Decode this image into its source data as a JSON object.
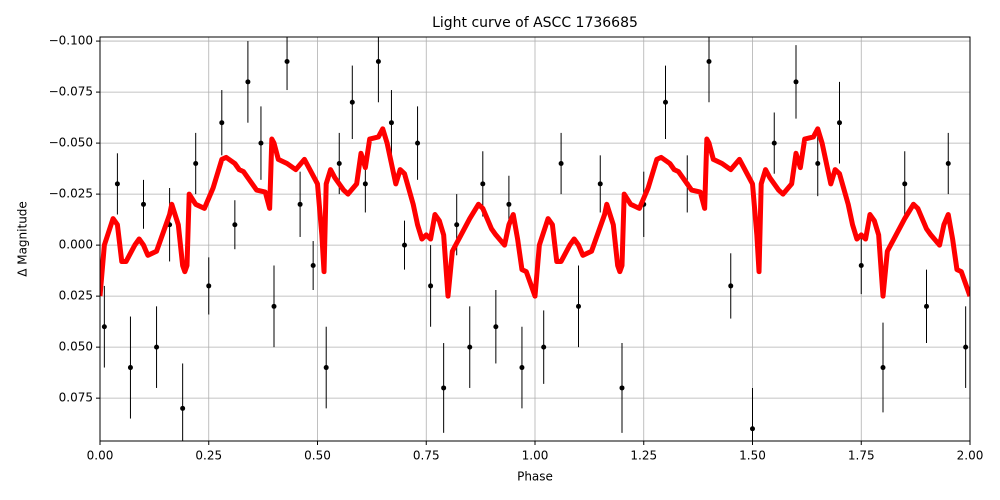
{
  "chart_data": {
    "type": "scatter",
    "title": "Light curve of ASCC 1736685",
    "xlabel": "Phase",
    "ylabel": "Δ Magnitude",
    "xlim": [
      0,
      2
    ],
    "ylim": [
      0.096,
      -0.102
    ],
    "grid": true,
    "xticks": [
      {
        "value": 0,
        "label": "0.00"
      },
      {
        "value": 0.25,
        "label": "0.25"
      },
      {
        "value": 0.5,
        "label": "0.50"
      },
      {
        "value": 0.75,
        "label": "0.75"
      },
      {
        "value": 1,
        "label": "1.00"
      },
      {
        "value": 1.25,
        "label": "1.25"
      },
      {
        "value": 1.5,
        "label": "1.50"
      },
      {
        "value": 1.75,
        "label": "1.75"
      },
      {
        "value": 2,
        "label": "2.00"
      }
    ],
    "yticks": [
      {
        "value": -0.1,
        "label": "−0.100"
      },
      {
        "value": -0.075,
        "label": "−0.075"
      },
      {
        "value": -0.05,
        "label": "−0.050"
      },
      {
        "value": -0.025,
        "label": "−0.025"
      },
      {
        "value": 0,
        "label": "0.000"
      },
      {
        "value": 0.025,
        "label": "0.025"
      },
      {
        "value": 0.05,
        "label": "0.050"
      },
      {
        "value": 0.075,
        "label": "0.075"
      }
    ],
    "points": {
      "color": "#000000",
      "x": [
        0.01,
        0.04,
        0.07,
        0.1,
        0.13,
        0.16,
        0.19,
        0.22,
        0.25,
        0.28,
        0.31,
        0.34,
        0.37,
        0.4,
        0.43,
        0.46,
        0.49,
        0.52,
        0.55,
        0.58,
        0.61,
        0.64,
        0.67,
        0.7,
        0.73,
        0.76,
        0.79,
        0.82,
        0.85,
        0.88,
        0.91,
        0.94,
        0.97,
        1.02,
        1.06,
        1.1,
        1.15,
        1.2,
        1.25,
        1.3,
        1.35,
        1.4,
        1.45,
        1.5,
        1.55,
        1.6,
        1.65,
        1.7,
        1.75,
        1.8,
        1.85,
        1.9,
        1.95,
        1.99
      ],
      "values": [
        0.04,
        -0.03,
        0.06,
        -0.02,
        0.05,
        -0.01,
        0.08,
        -0.04,
        0.02,
        -0.06,
        -0.01,
        -0.08,
        -0.05,
        0.03,
        -0.09,
        -0.02,
        0.01,
        0.06,
        -0.04,
        -0.07,
        -0.03,
        -0.09,
        -0.06,
        0.0,
        -0.05,
        0.02,
        0.07,
        -0.01,
        0.05,
        -0.03,
        0.04,
        -0.02,
        0.06,
        0.05,
        -0.04,
        0.03,
        -0.03,
        0.07,
        -0.02,
        -0.07,
        -0.03,
        -0.09,
        0.02,
        0.09,
        -0.05,
        -0.08,
        -0.04,
        -0.06,
        0.01,
        0.06,
        -0.03,
        0.03,
        -0.04,
        0.05
      ],
      "errors": [
        0.02,
        0.015,
        0.025,
        0.012,
        0.02,
        0.018,
        0.022,
        0.015,
        0.014,
        0.016,
        0.012,
        0.02,
        0.018,
        0.02,
        0.014,
        0.016,
        0.012,
        0.02,
        0.015,
        0.018,
        0.014,
        0.02,
        0.016,
        0.012,
        0.018,
        0.02,
        0.022,
        0.015,
        0.02,
        0.016,
        0.018,
        0.014,
        0.02,
        0.018,
        0.015,
        0.02,
        0.014,
        0.022,
        0.016,
        0.018,
        0.014,
        0.02,
        0.016,
        0.02,
        0.015,
        0.018,
        0.016,
        0.02,
        0.014,
        0.022,
        0.016,
        0.018,
        0.015,
        0.02
      ]
    },
    "model": {
      "color": "#ff0000",
      "x": [
        0,
        0.01,
        0.03,
        0.04,
        0.05,
        0.06,
        0.08,
        0.09,
        0.1,
        0.11,
        0.13,
        0.14,
        0.16,
        0.165,
        0.18,
        0.19,
        0.195,
        0.2,
        0.205,
        0.22,
        0.24,
        0.26,
        0.28,
        0.29,
        0.31,
        0.32,
        0.33,
        0.35,
        0.36,
        0.38,
        0.39,
        0.395,
        0.4,
        0.41,
        0.43,
        0.45,
        0.47,
        0.48,
        0.5,
        0.51,
        0.515,
        0.52,
        0.53,
        0.54,
        0.56,
        0.57,
        0.59,
        0.6,
        0.61,
        0.62,
        0.64,
        0.65,
        0.66,
        0.68,
        0.69,
        0.7,
        0.72,
        0.73,
        0.74,
        0.75,
        0.76,
        0.77,
        0.78,
        0.79,
        0.8,
        0.81,
        0.83,
        0.85,
        0.87,
        0.88,
        0.9,
        0.91,
        0.93,
        0.94,
        0.95,
        0.96,
        0.97,
        0.98,
        1,
        1.01,
        1.03,
        1.04,
        1.05,
        1.06,
        1.08,
        1.09,
        1.1,
        1.11,
        1.13,
        1.14,
        1.16,
        1.165,
        1.18,
        1.19,
        1.195,
        1.2,
        1.205,
        1.22,
        1.24,
        1.26,
        1.28,
        1.29,
        1.31,
        1.32,
        1.33,
        1.35,
        1.36,
        1.38,
        1.39,
        1.395,
        1.4,
        1.41,
        1.43,
        1.45,
        1.47,
        1.48,
        1.5,
        1.51,
        1.515,
        1.52,
        1.53,
        1.54,
        1.56,
        1.57,
        1.59,
        1.6,
        1.61,
        1.62,
        1.64,
        1.65,
        1.66,
        1.68,
        1.69,
        1.7,
        1.72,
        1.73,
        1.74,
        1.75,
        1.76,
        1.77,
        1.78,
        1.79,
        1.8,
        1.81,
        1.83,
        1.85,
        1.87,
        1.88,
        1.9,
        1.91,
        1.93,
        1.94,
        1.95,
        1.96,
        1.97,
        1.98,
        2
      ],
      "values": [
        0.025,
        0,
        -0.013,
        -0.01,
        0.008,
        0.008,
        0,
        -0.003,
        0,
        0.005,
        0.003,
        -0.003,
        -0.015,
        -0.02,
        -0.01,
        0.01,
        0.013,
        0.01,
        -0.025,
        -0.02,
        -0.018,
        -0.028,
        -0.042,
        -0.043,
        -0.04,
        -0.037,
        -0.036,
        -0.03,
        -0.027,
        -0.026,
        -0.018,
        -0.052,
        -0.05,
        -0.042,
        -0.04,
        -0.037,
        -0.042,
        -0.038,
        -0.03,
        -0.005,
        0.013,
        -0.03,
        -0.037,
        -0.033,
        -0.027,
        -0.025,
        -0.03,
        -0.045,
        -0.038,
        -0.052,
        -0.053,
        -0.057,
        -0.05,
        -0.03,
        -0.037,
        -0.035,
        -0.02,
        -0.01,
        -0.003,
        -0.005,
        -0.003,
        -0.015,
        -0.012,
        -0.005,
        0.025,
        0.003,
        -0.005,
        -0.013,
        -0.02,
        -0.018,
        -0.008,
        -0.005,
        0,
        -0.01,
        -0.015,
        -0.003,
        0.012,
        0.013,
        0.025,
        0,
        -0.013,
        -0.01,
        0.008,
        0.008,
        0,
        -0.003,
        0,
        0.005,
        0.003,
        -0.003,
        -0.015,
        -0.02,
        -0.01,
        0.01,
        0.013,
        0.01,
        -0.025,
        -0.02,
        -0.018,
        -0.028,
        -0.042,
        -0.043,
        -0.04,
        -0.037,
        -0.036,
        -0.03,
        -0.027,
        -0.026,
        -0.018,
        -0.052,
        -0.05,
        -0.042,
        -0.04,
        -0.037,
        -0.042,
        -0.038,
        -0.03,
        -0.005,
        0.013,
        -0.03,
        -0.037,
        -0.033,
        -0.027,
        -0.025,
        -0.03,
        -0.045,
        -0.038,
        -0.052,
        -0.053,
        -0.057,
        -0.05,
        -0.03,
        -0.037,
        -0.035,
        -0.02,
        -0.01,
        -0.003,
        -0.005,
        -0.003,
        -0.015,
        -0.012,
        -0.005,
        0.025,
        0.003,
        -0.005,
        -0.013,
        -0.02,
        -0.018,
        -0.008,
        -0.005,
        0,
        -0.01,
        -0.015,
        -0.003,
        0.012,
        0.013,
        0.025
      ]
    }
  }
}
